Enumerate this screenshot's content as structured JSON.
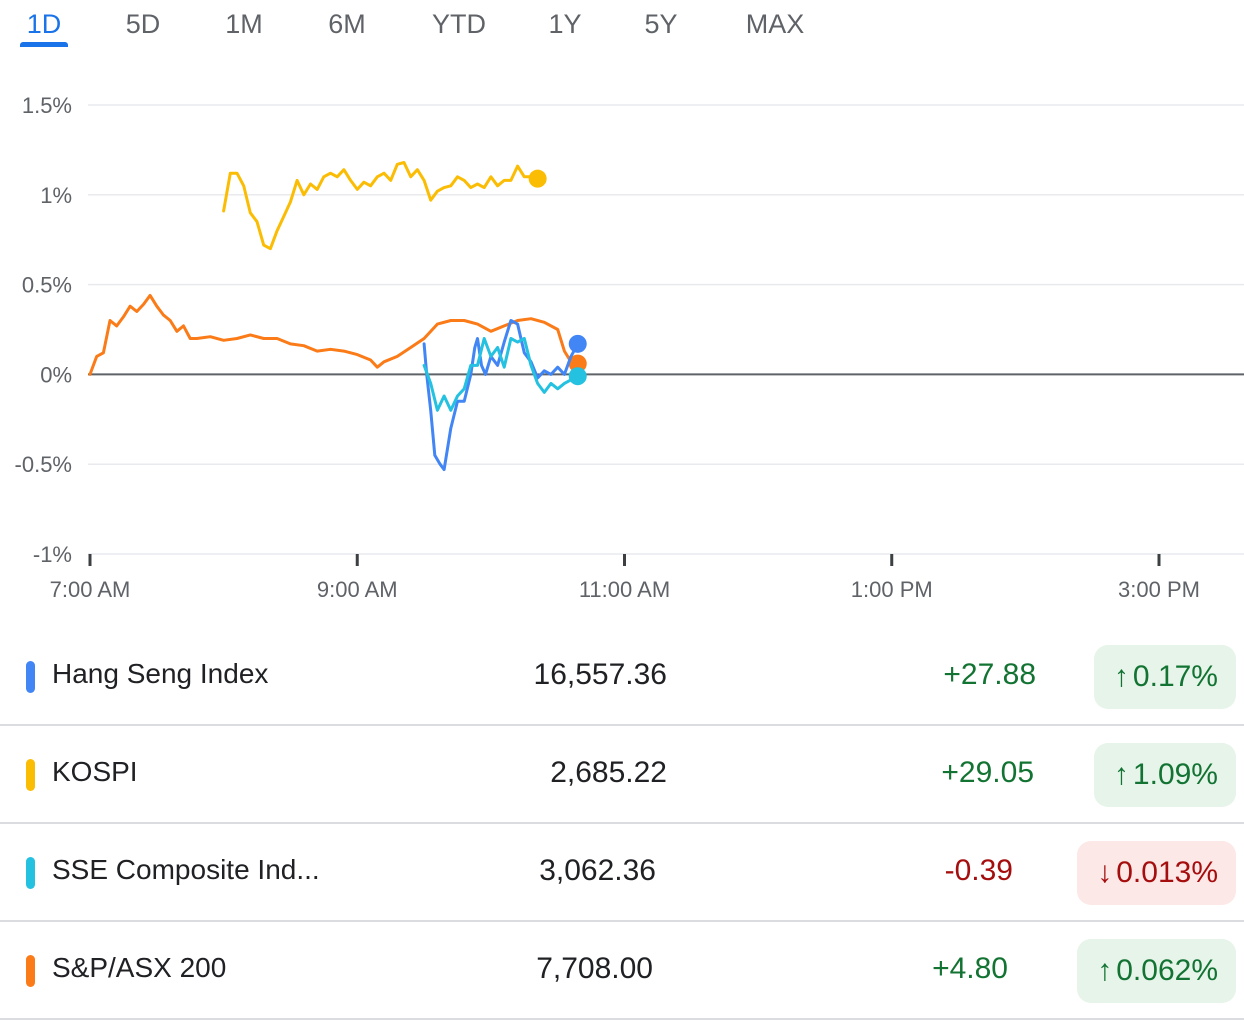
{
  "tabs": [
    {
      "label": "1D",
      "active": true
    },
    {
      "label": "5D"
    },
    {
      "label": "1M"
    },
    {
      "label": "6M"
    },
    {
      "label": "YTD"
    },
    {
      "label": "1Y"
    },
    {
      "label": "5Y"
    },
    {
      "label": "MAX"
    }
  ],
  "colors": {
    "accent": "#1a73e8",
    "hang_seng": "#4285f4",
    "kospi": "#fbbc04",
    "sse": "#24c1e0",
    "asx": "#fa7b17",
    "positive": "#137333",
    "negative": "#a50e0e"
  },
  "chart_data": {
    "type": "line",
    "title": "",
    "xlabel": "",
    "ylabel": "",
    "x_unit": "hours since midnight",
    "x_range": [
      7,
      15.6
    ],
    "x_ticks": [
      7,
      9,
      11,
      13,
      15
    ],
    "x_tick_labels": [
      "7:00 AM",
      "9:00 AM",
      "11:00 AM",
      "1:00 PM",
      "3:00 PM"
    ],
    "ylim": [
      -1,
      1.5
    ],
    "y_ticks": [
      -1,
      -0.5,
      0,
      0.5,
      1,
      1.5
    ],
    "y_tick_labels": [
      "-1%",
      "-0.5%",
      "0%",
      "0.5%",
      "1%",
      "1.5%"
    ],
    "grid": true,
    "baseline": 0,
    "series": [
      {
        "name": "KOSPI",
        "color": "#fbbc04",
        "points": [
          [
            8,
            0.91
          ],
          [
            8.05,
            1.12
          ],
          [
            8.1,
            1.12
          ],
          [
            8.15,
            1.05
          ],
          [
            8.2,
            0.9
          ],
          [
            8.25,
            0.85
          ],
          [
            8.3,
            0.72
          ],
          [
            8.35,
            0.7
          ],
          [
            8.4,
            0.8
          ],
          [
            8.45,
            0.88
          ],
          [
            8.5,
            0.96
          ],
          [
            8.55,
            1.08
          ],
          [
            8.6,
            1.0
          ],
          [
            8.65,
            1.06
          ],
          [
            8.7,
            1.03
          ],
          [
            8.75,
            1.1
          ],
          [
            8.8,
            1.12
          ],
          [
            8.85,
            1.1
          ],
          [
            8.9,
            1.14
          ],
          [
            8.95,
            1.08
          ],
          [
            9.0,
            1.03
          ],
          [
            9.05,
            1.07
          ],
          [
            9.1,
            1.05
          ],
          [
            9.15,
            1.1
          ],
          [
            9.2,
            1.12
          ],
          [
            9.25,
            1.08
          ],
          [
            9.3,
            1.17
          ],
          [
            9.35,
            1.18
          ],
          [
            9.4,
            1.1
          ],
          [
            9.45,
            1.14
          ],
          [
            9.5,
            1.08
          ],
          [
            9.55,
            0.97
          ],
          [
            9.6,
            1.02
          ],
          [
            9.65,
            1.04
          ],
          [
            9.7,
            1.05
          ],
          [
            9.75,
            1.1
          ],
          [
            9.8,
            1.08
          ],
          [
            9.85,
            1.04
          ],
          [
            9.9,
            1.06
          ],
          [
            9.95,
            1.04
          ],
          [
            10.0,
            1.1
          ],
          [
            10.05,
            1.05
          ],
          [
            10.1,
            1.08
          ],
          [
            10.15,
            1.08
          ],
          [
            10.2,
            1.16
          ],
          [
            10.25,
            1.1
          ],
          [
            10.3,
            1.1
          ],
          [
            10.35,
            1.09
          ]
        ]
      },
      {
        "name": "S&P/ASX 200",
        "color": "#fa7b17",
        "points": [
          [
            7,
            0
          ],
          [
            7.05,
            0.1
          ],
          [
            7.1,
            0.12
          ],
          [
            7.15,
            0.3
          ],
          [
            7.2,
            0.27
          ],
          [
            7.25,
            0.32
          ],
          [
            7.3,
            0.38
          ],
          [
            7.35,
            0.35
          ],
          [
            7.4,
            0.39
          ],
          [
            7.45,
            0.44
          ],
          [
            7.5,
            0.38
          ],
          [
            7.55,
            0.33
          ],
          [
            7.6,
            0.3
          ],
          [
            7.65,
            0.24
          ],
          [
            7.7,
            0.27
          ],
          [
            7.75,
            0.2
          ],
          [
            7.8,
            0.2
          ],
          [
            7.9,
            0.21
          ],
          [
            8.0,
            0.19
          ],
          [
            8.1,
            0.2
          ],
          [
            8.2,
            0.22
          ],
          [
            8.3,
            0.2
          ],
          [
            8.4,
            0.2
          ],
          [
            8.5,
            0.17
          ],
          [
            8.6,
            0.16
          ],
          [
            8.7,
            0.13
          ],
          [
            8.8,
            0.14
          ],
          [
            8.9,
            0.13
          ],
          [
            9.0,
            0.11
          ],
          [
            9.1,
            0.08
          ],
          [
            9.15,
            0.04
          ],
          [
            9.2,
            0.07
          ],
          [
            9.3,
            0.1
          ],
          [
            9.4,
            0.15
          ],
          [
            9.5,
            0.2
          ],
          [
            9.6,
            0.28
          ],
          [
            9.7,
            0.3
          ],
          [
            9.8,
            0.3
          ],
          [
            9.9,
            0.28
          ],
          [
            10.0,
            0.24
          ],
          [
            10.1,
            0.27
          ],
          [
            10.2,
            0.3
          ],
          [
            10.3,
            0.31
          ],
          [
            10.4,
            0.29
          ],
          [
            10.5,
            0.25
          ],
          [
            10.55,
            0.13
          ],
          [
            10.6,
            0.07
          ],
          [
            10.65,
            0.06
          ]
        ]
      },
      {
        "name": "Hang Seng Index",
        "color": "#4285f4",
        "points": [
          [
            9.5,
            0.17
          ],
          [
            9.52,
            0.0
          ],
          [
            9.55,
            -0.2
          ],
          [
            9.58,
            -0.45
          ],
          [
            9.62,
            -0.5
          ],
          [
            9.65,
            -0.53
          ],
          [
            9.7,
            -0.3
          ],
          [
            9.75,
            -0.15
          ],
          [
            9.8,
            -0.15
          ],
          [
            9.85,
            0.0
          ],
          [
            9.88,
            0.15
          ],
          [
            9.9,
            0.2
          ],
          [
            9.93,
            0.05
          ],
          [
            9.96,
            0.0
          ],
          [
            10.0,
            0.1
          ],
          [
            10.05,
            0.05
          ],
          [
            10.1,
            0.18
          ],
          [
            10.15,
            0.3
          ],
          [
            10.2,
            0.28
          ],
          [
            10.25,
            0.12
          ],
          [
            10.3,
            0.07
          ],
          [
            10.35,
            -0.02
          ],
          [
            10.4,
            0.02
          ],
          [
            10.45,
            0.0
          ],
          [
            10.5,
            0.04
          ],
          [
            10.55,
            0.0
          ],
          [
            10.6,
            0.1
          ],
          [
            10.65,
            0.17
          ]
        ]
      },
      {
        "name": "SSE Composite Index",
        "color": "#24c1e0",
        "points": [
          [
            9.5,
            0.05
          ],
          [
            9.55,
            -0.05
          ],
          [
            9.6,
            -0.2
          ],
          [
            9.65,
            -0.12
          ],
          [
            9.7,
            -0.2
          ],
          [
            9.75,
            -0.12
          ],
          [
            9.8,
            -0.08
          ],
          [
            9.85,
            0.05
          ],
          [
            9.9,
            0.05
          ],
          [
            9.95,
            0.2
          ],
          [
            10.0,
            0.1
          ],
          [
            10.05,
            0.15
          ],
          [
            10.1,
            0.04
          ],
          [
            10.15,
            0.2
          ],
          [
            10.2,
            0.18
          ],
          [
            10.25,
            0.2
          ],
          [
            10.3,
            0.05
          ],
          [
            10.35,
            -0.05
          ],
          [
            10.4,
            -0.1
          ],
          [
            10.45,
            -0.05
          ],
          [
            10.5,
            -0.08
          ],
          [
            10.55,
            -0.05
          ],
          [
            10.6,
            -0.03
          ],
          [
            10.65,
            -0.01
          ]
        ]
      }
    ]
  },
  "quotes": [
    {
      "name": "Hang Seng Index",
      "price": "16,557.36",
      "change": "+27.88",
      "percent": "0.17%",
      "direction": "up",
      "color": "#4285f4"
    },
    {
      "name": "KOSPI",
      "price": "2,685.22",
      "change": "+29.05",
      "percent": "1.09%",
      "direction": "up",
      "color": "#fbbc04"
    },
    {
      "name": "SSE Composite Ind...",
      "price": "3,062.36",
      "change": "-0.39",
      "percent": "0.013%",
      "direction": "down",
      "color": "#24c1e0"
    },
    {
      "name": "S&P/ASX 200",
      "price": "7,708.00",
      "change": "+4.80",
      "percent": "0.062%",
      "direction": "up",
      "color": "#fa7b17"
    }
  ]
}
